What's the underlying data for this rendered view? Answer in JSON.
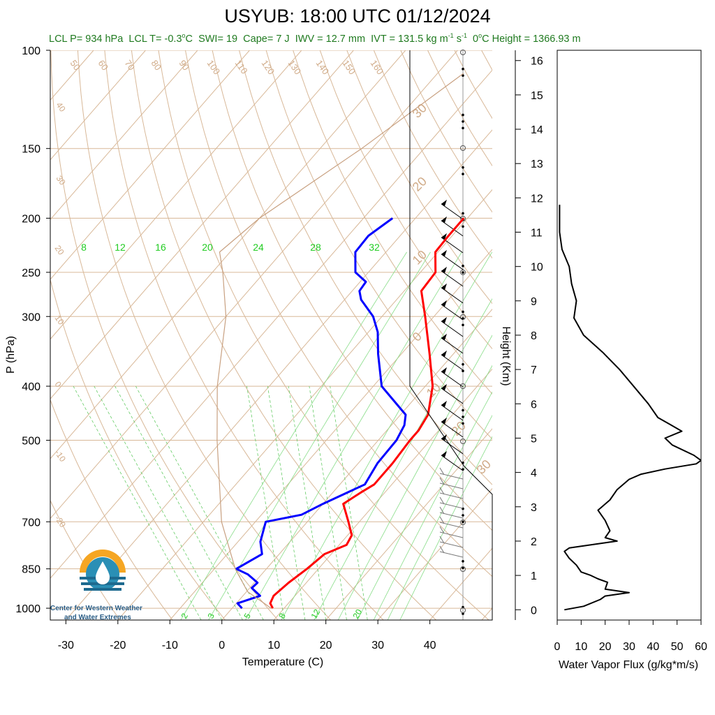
{
  "title": "USYUB: 18:00 UTC 01/12/2024",
  "subtitle": {
    "lcl_p": "LCL P= 934 hPa",
    "lcl_t_pre": "LCL T= -0.3",
    "lcl_t_unit": "C",
    "swi": "SWI= 19",
    "cape": "Cape= 7 J",
    "iwv": "IWV = 12.7 mm",
    "ivt_pre": "IVT = 131.5 kg m",
    "ivt_mid": " s",
    "height_unit": "C Height = 1366.93 m",
    "sup_o": "o",
    "sup_neg1": "-1"
  },
  "logo": {
    "line1": "Center for Western Weather",
    "line2": "and Water Extremes"
  },
  "chart_data": [
    {
      "type": "line",
      "name": "skew-t",
      "xlabel": "Temperature (C)",
      "ylabel": "P (hPa)",
      "xlim": [
        -33,
        52
      ],
      "ylim": [
        1050,
        100
      ],
      "y_scale": "log",
      "y_ticks": [
        100,
        150,
        200,
        250,
        300,
        400,
        500,
        700,
        850,
        1000
      ],
      "x_ticks": [
        -30,
        -20,
        -10,
        0,
        10,
        20,
        30,
        40
      ],
      "dry_adiabat_labels": [
        "50",
        "60",
        "70",
        "80",
        "90",
        "100",
        "110",
        "120",
        "130",
        "140",
        "150",
        "160"
      ],
      "skewed_isotherm_labels": [
        "40",
        "30",
        "20",
        "10",
        "0",
        "-10",
        "-20",
        "30",
        "20",
        "10",
        "0",
        "10",
        "20",
        "30"
      ],
      "mixing_ratio_labels_top": [
        "8",
        "12",
        "16",
        "20",
        "24",
        "28",
        "32"
      ],
      "mixing_ratio_labels_bottom": [
        "2",
        "3",
        "5",
        "8",
        "12",
        "20"
      ],
      "series": [
        {
          "name": "Temperature",
          "color": "#ff0000",
          "p": [
            1000,
            980,
            950,
            900,
            850,
            800,
            770,
            740,
            700,
            650,
            620,
            600,
            550,
            500,
            480,
            450,
            400,
            350,
            300,
            270,
            250,
            230,
            215,
            200
          ],
          "t": [
            7.8,
            6.5,
            5.9,
            6.6,
            7.8,
            8.7,
            11.4,
            10.8,
            7.9,
            3.9,
            5.4,
            6.6,
            6.6,
            6.1,
            6.1,
            5.3,
            1.4,
            -4.6,
            -11.7,
            -16.7,
            -17.1,
            -20.5,
            -20.7,
            -20.7
          ]
        },
        {
          "name": "Dewpoint",
          "color": "#0000ff",
          "p": [
            1000,
            980,
            950,
            920,
            900,
            870,
            850,
            800,
            760,
            700,
            680,
            650,
            600,
            550,
            500,
            470,
            450,
            400,
            350,
            320,
            300,
            280,
            270,
            260,
            250,
            230,
            215,
            200
          ],
          "t": [
            1.9,
            0.2,
            3.3,
            0.4,
            0.6,
            -2.6,
            -5.8,
            -3.3,
            -5.7,
            -8.0,
            -2.3,
            0.0,
            4.8,
            3.7,
            3.5,
            2.5,
            1.0,
            -8.4,
            -14.5,
            -18.2,
            -21.7,
            -26.8,
            -28.6,
            -28.9,
            -32.5,
            -35.9,
            -36.1,
            -34.4
          ]
        },
        {
          "name": "Parcel",
          "color": "#c8a080",
          "p": [
            1000,
            934,
            850,
            700,
            500,
            400,
            300,
            250,
            230,
            200,
            150,
            110
          ],
          "t": [
            7.5,
            0.2,
            -6.0,
            -16.5,
            -31.0,
            -40.0,
            -50.0,
            -58.0,
            -62.0,
            -60.0,
            -52.0,
            -45.0
          ]
        }
      ]
    },
    {
      "type": "line",
      "name": "water-vapor-flux",
      "xlabel": "Water Vapor Flux (g/kg*m/s)",
      "ylabel": "Height (Km)",
      "xlim": [
        0,
        60
      ],
      "ylim": [
        -0.3,
        16.3
      ],
      "x_ticks": [
        0,
        10,
        20,
        30,
        40,
        50,
        60
      ],
      "y_ticks": [
        0,
        1,
        2,
        3,
        4,
        5,
        6,
        7,
        8,
        9,
        10,
        11,
        12,
        13,
        14,
        15,
        16
      ],
      "series": [
        {
          "name": "Water Vapor Flux",
          "color": "#000000",
          "height_km": [
            0.0,
            0.1,
            0.3,
            0.4,
            0.5,
            0.6,
            0.8,
            0.9,
            1.0,
            1.1,
            1.3,
            1.5,
            1.7,
            1.8,
            2.0,
            2.1,
            2.3,
            2.6,
            2.9,
            3.2,
            3.5,
            3.8,
            3.95,
            4.1,
            4.25,
            4.35,
            4.5,
            4.8,
            5.0,
            5.2,
            5.4,
            5.6,
            6.0,
            6.5,
            7.0,
            7.5,
            8.0,
            8.5,
            9.0,
            9.5,
            10.0,
            10.5,
            11.0,
            11.5,
            11.8
          ],
          "flux": [
            3,
            11,
            18,
            20,
            30,
            20,
            21,
            17,
            14,
            10,
            8,
            5,
            3,
            5,
            25,
            20,
            22,
            20,
            17,
            22,
            25,
            30,
            35,
            45,
            58,
            60,
            57,
            48,
            45,
            52,
            47,
            42,
            38,
            32,
            26,
            19,
            11,
            7,
            8,
            6,
            5,
            2,
            1,
            1,
            1
          ]
        }
      ]
    }
  ]
}
